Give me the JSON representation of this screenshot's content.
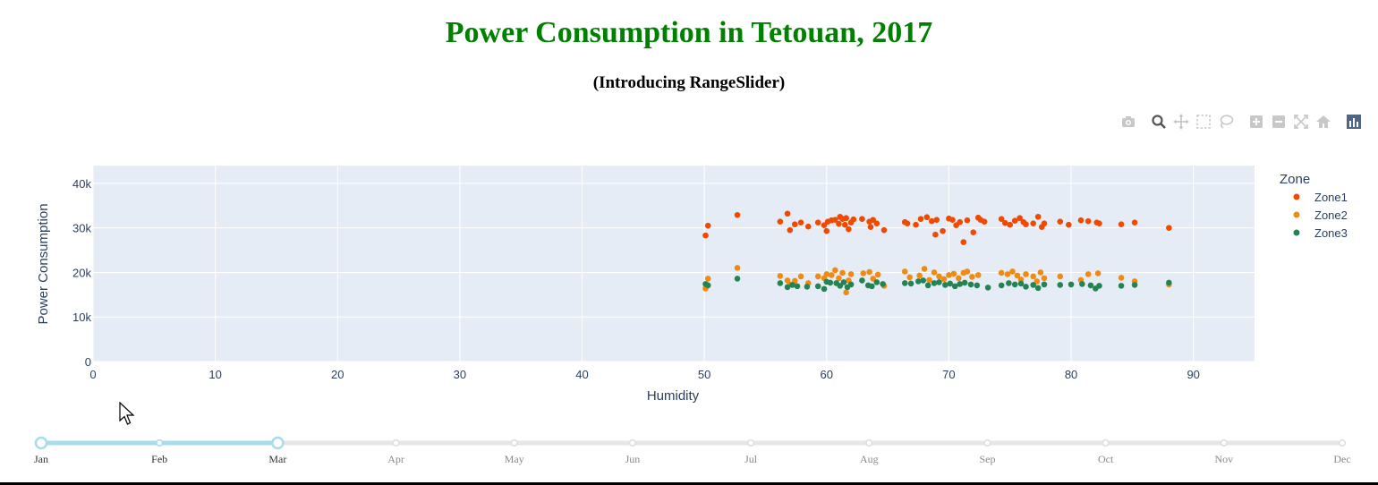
{
  "header": {
    "title": "Power Consumption in Tetouan, 2017",
    "title_color": "#008000",
    "subtitle": "(Introducing RangeSlider)"
  },
  "modebar": {
    "icons": [
      "camera-icon",
      "zoom-icon",
      "pan-icon",
      "box-select-icon",
      "lasso-select-icon",
      "zoom-in-icon",
      "zoom-out-icon",
      "autoscale-icon",
      "reset-axes-icon",
      "plotly-logo-icon"
    ]
  },
  "slider": {
    "labels": [
      "Jan",
      "Feb",
      "Mar",
      "Apr",
      "May",
      "Jun",
      "Jul",
      "Aug",
      "Sep",
      "Oct",
      "Nov",
      "Dec"
    ],
    "selected_start": "Jan",
    "selected_end": "Mar",
    "active_color": "#a8dcec",
    "track_color": "#e6e6e6"
  },
  "chart_data": {
    "type": "scatter",
    "title": "",
    "xlabel": "Humidity",
    "ylabel": "Power Consumption",
    "xlim": [
      0,
      95
    ],
    "ylim": [
      0,
      44000
    ],
    "xticks": [
      0,
      10,
      20,
      30,
      40,
      50,
      60,
      70,
      80,
      90
    ],
    "yticks": [
      0,
      10000,
      20000,
      30000,
      40000
    ],
    "ytick_labels": [
      "0",
      "10k",
      "20k",
      "30k",
      "40k"
    ],
    "grid": true,
    "plot_background": "#e5ecf6",
    "legend": {
      "title": "Zone",
      "placement": "right"
    },
    "series": [
      {
        "name": "Zone1",
        "color": "#f04a00",
        "points": [
          [
            50.1,
            28300
          ],
          [
            50.3,
            30500
          ],
          [
            52.7,
            32900
          ],
          [
            56.2,
            31400
          ],
          [
            56.8,
            33200
          ],
          [
            57.0,
            29500
          ],
          [
            57.4,
            30800
          ],
          [
            57.9,
            31200
          ],
          [
            58.5,
            30300
          ],
          [
            59.3,
            31200
          ],
          [
            59.8,
            30600
          ],
          [
            60.0,
            29300
          ],
          [
            60.1,
            31400
          ],
          [
            60.4,
            31700
          ],
          [
            60.7,
            31800
          ],
          [
            61.0,
            30900
          ],
          [
            61.1,
            32500
          ],
          [
            61.3,
            32000
          ],
          [
            61.5,
            30700
          ],
          [
            61.6,
            32200
          ],
          [
            61.8,
            29700
          ],
          [
            62.0,
            31200
          ],
          [
            62.2,
            31900
          ],
          [
            62.9,
            32000
          ],
          [
            63.5,
            31400
          ],
          [
            63.6,
            30200
          ],
          [
            63.8,
            31800
          ],
          [
            64.1,
            31000
          ],
          [
            64.7,
            29500
          ],
          [
            66.4,
            31300
          ],
          [
            66.6,
            31000
          ],
          [
            67.3,
            30700
          ],
          [
            67.7,
            32000
          ],
          [
            68.2,
            32400
          ],
          [
            68.6,
            31500
          ],
          [
            68.9,
            28500
          ],
          [
            69.0,
            31800
          ],
          [
            69.5,
            29300
          ],
          [
            70.0,
            32100
          ],
          [
            70.3,
            31800
          ],
          [
            70.6,
            30600
          ],
          [
            70.9,
            31300
          ],
          [
            71.2,
            26800
          ],
          [
            71.5,
            31700
          ],
          [
            72.0,
            29000
          ],
          [
            72.4,
            32300
          ],
          [
            72.6,
            31800
          ],
          [
            72.9,
            31400
          ],
          [
            74.3,
            32000
          ],
          [
            74.6,
            31100
          ],
          [
            75.0,
            30700
          ],
          [
            75.4,
            31600
          ],
          [
            75.8,
            32200
          ],
          [
            76.1,
            31300
          ],
          [
            76.3,
            30800
          ],
          [
            76.9,
            31000
          ],
          [
            77.3,
            32500
          ],
          [
            77.6,
            30200
          ],
          [
            77.8,
            31000
          ],
          [
            79.1,
            31400
          ],
          [
            79.8,
            30700
          ],
          [
            80.8,
            31700
          ],
          [
            81.4,
            31500
          ],
          [
            82.1,
            31200
          ],
          [
            82.3,
            31000
          ],
          [
            84.1,
            30800
          ],
          [
            85.2,
            31200
          ],
          [
            88.0,
            30000
          ]
        ]
      },
      {
        "name": "Zone2",
        "color": "#ef8a12",
        "points": [
          [
            50.1,
            16400
          ],
          [
            50.3,
            18600
          ],
          [
            52.7,
            21000
          ],
          [
            56.2,
            19200
          ],
          [
            56.8,
            18200
          ],
          [
            57.0,
            17300
          ],
          [
            57.4,
            18100
          ],
          [
            57.9,
            19100
          ],
          [
            58.5,
            17600
          ],
          [
            59.3,
            19100
          ],
          [
            59.8,
            18700
          ],
          [
            60.0,
            19600
          ],
          [
            60.4,
            19400
          ],
          [
            60.7,
            20500
          ],
          [
            61.0,
            18700
          ],
          [
            61.3,
            19900
          ],
          [
            61.6,
            15500
          ],
          [
            61.8,
            18200
          ],
          [
            62.0,
            19600
          ],
          [
            63.0,
            19800
          ],
          [
            63.5,
            20100
          ],
          [
            63.8,
            18600
          ],
          [
            64.2,
            19500
          ],
          [
            64.7,
            17000
          ],
          [
            66.4,
            20200
          ],
          [
            66.8,
            18900
          ],
          [
            67.6,
            19300
          ],
          [
            68.0,
            20800
          ],
          [
            68.4,
            18300
          ],
          [
            68.8,
            20000
          ],
          [
            69.2,
            19100
          ],
          [
            69.6,
            18500
          ],
          [
            70.0,
            19400
          ],
          [
            70.4,
            19700
          ],
          [
            70.8,
            18700
          ],
          [
            71.2,
            19900
          ],
          [
            71.5,
            20200
          ],
          [
            71.9,
            19000
          ],
          [
            72.4,
            19400
          ],
          [
            74.3,
            19900
          ],
          [
            74.8,
            19600
          ],
          [
            75.2,
            20200
          ],
          [
            75.6,
            19300
          ],
          [
            75.9,
            18400
          ],
          [
            76.3,
            19600
          ],
          [
            76.9,
            19100
          ],
          [
            77.2,
            18000
          ],
          [
            77.5,
            20000
          ],
          [
            77.8,
            18700
          ],
          [
            79.1,
            19100
          ],
          [
            80.8,
            18300
          ],
          [
            81.4,
            19600
          ],
          [
            82.2,
            19800
          ],
          [
            84.1,
            18800
          ],
          [
            85.2,
            18000
          ],
          [
            88.0,
            17300
          ]
        ]
      },
      {
        "name": "Zone3",
        "color": "#238452",
        "points": [
          [
            50.1,
            17400
          ],
          [
            50.3,
            17100
          ],
          [
            52.7,
            18600
          ],
          [
            56.2,
            17600
          ],
          [
            56.8,
            16700
          ],
          [
            57.2,
            17200
          ],
          [
            57.6,
            16900
          ],
          [
            58.4,
            16800
          ],
          [
            59.3,
            16900
          ],
          [
            59.8,
            16300
          ],
          [
            60.0,
            17900
          ],
          [
            60.3,
            17700
          ],
          [
            60.8,
            17600
          ],
          [
            61.1,
            17000
          ],
          [
            61.4,
            17800
          ],
          [
            61.7,
            16700
          ],
          [
            62.0,
            17300
          ],
          [
            62.9,
            18200
          ],
          [
            63.4,
            17100
          ],
          [
            63.7,
            16900
          ],
          [
            64.1,
            17800
          ],
          [
            64.6,
            17400
          ],
          [
            66.4,
            17600
          ],
          [
            66.9,
            17500
          ],
          [
            67.5,
            18000
          ],
          [
            67.9,
            18200
          ],
          [
            68.3,
            17100
          ],
          [
            68.8,
            17600
          ],
          [
            69.2,
            17800
          ],
          [
            69.7,
            17200
          ],
          [
            70.1,
            17500
          ],
          [
            70.5,
            16900
          ],
          [
            70.9,
            17400
          ],
          [
            71.3,
            17700
          ],
          [
            71.8,
            17300
          ],
          [
            72.3,
            17100
          ],
          [
            73.2,
            16600
          ],
          [
            74.3,
            17100
          ],
          [
            74.9,
            17600
          ],
          [
            75.4,
            17300
          ],
          [
            75.9,
            17500
          ],
          [
            76.3,
            16800
          ],
          [
            76.9,
            17200
          ],
          [
            77.3,
            16500
          ],
          [
            77.8,
            17300
          ],
          [
            79.1,
            17200
          ],
          [
            80.0,
            17300
          ],
          [
            80.9,
            17400
          ],
          [
            81.6,
            17100
          ],
          [
            82.0,
            16400
          ],
          [
            82.3,
            17000
          ],
          [
            84.1,
            17000
          ],
          [
            85.2,
            17200
          ],
          [
            88.0,
            17700
          ]
        ]
      }
    ]
  }
}
